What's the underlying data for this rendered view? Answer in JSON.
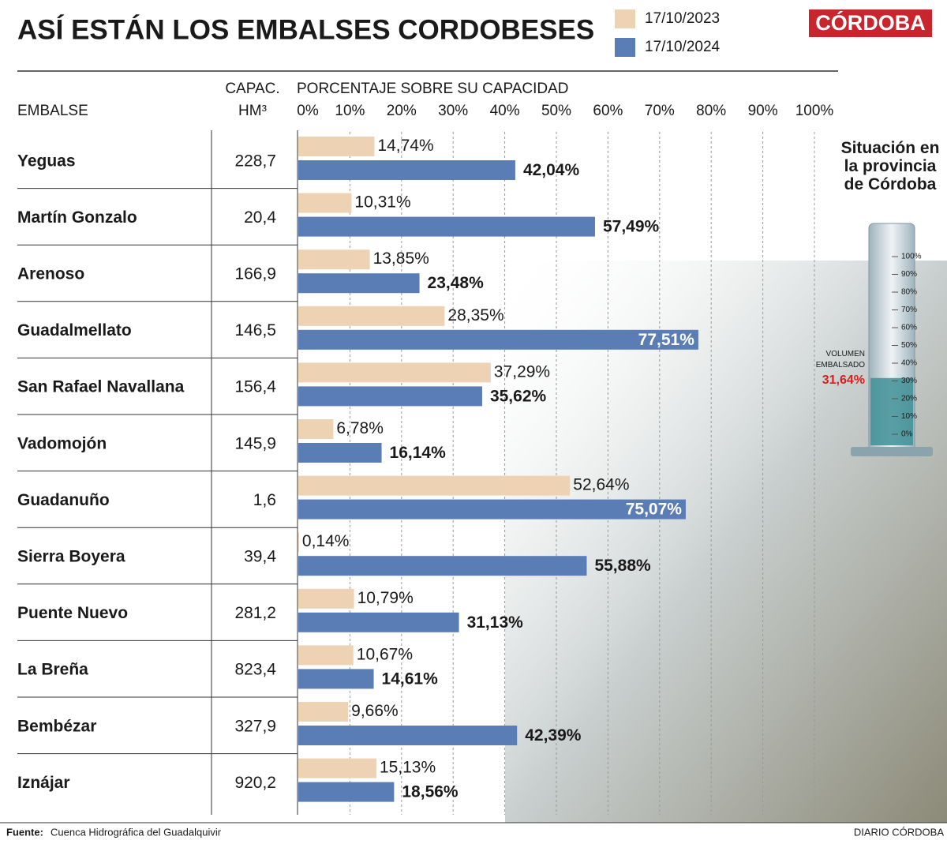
{
  "chart_data": {
    "type": "bar",
    "title": "ASÍ ESTÁN LOS EMBALSES CORDOBESES",
    "brand": "CÓRDOBA",
    "name_header": "EMBALSE",
    "capacity_header": "CAPAC.",
    "capacity_unit": "HM³",
    "axis_title": "PORCENTAJE SOBRE SU CAPACIDAD",
    "categories": [
      "Yeguas",
      "Martín Gonzalo",
      "Arenoso",
      "Guadalmellato",
      "San Rafael Navallana",
      "Vadomojón",
      "Guadanuño",
      "Sierra Boyera",
      "Puente Nuevo",
      "La Breña",
      "Bembézar",
      "Iznájar"
    ],
    "capacities": [
      "228,7",
      "20,4",
      "166,9",
      "146,5",
      "156,4",
      "145,9",
      "1,6",
      "39,4",
      "281,2",
      "823,4",
      "327,9",
      "920,2"
    ],
    "series": [
      {
        "name": "17/10/2023",
        "color": "#edd3b4",
        "values": [
          14.74,
          10.31,
          13.85,
          28.35,
          37.29,
          6.78,
          52.64,
          0.14,
          10.79,
          10.67,
          9.66,
          15.13
        ],
        "value_labels": [
          "14,74%",
          "10,31%",
          "13,85%",
          "28,35%",
          "37,29%",
          "6,78%",
          "52,64%",
          "0,14%",
          "10,79%",
          "10,67%",
          "9,66%",
          "15,13%"
        ]
      },
      {
        "name": "17/10/2024",
        "color": "#5b7db6",
        "values": [
          42.04,
          57.49,
          23.48,
          77.51,
          35.62,
          16.14,
          75.07,
          55.88,
          31.13,
          14.61,
          42.39,
          18.56
        ],
        "value_labels": [
          "42,04%",
          "57,49%",
          "23,48%",
          "77,51%",
          "35,62%",
          "16,14%",
          "75,07%",
          "55,88%",
          "31,13%",
          "14,61%",
          "42,39%",
          "18,56%"
        ]
      }
    ],
    "xlim": [
      0,
      100
    ],
    "xticks": [
      {
        "value": 0,
        "label": "0%"
      },
      {
        "value": 10,
        "label": "10%"
      },
      {
        "value": 20,
        "label": "20%"
      },
      {
        "value": 30,
        "label": "30%"
      },
      {
        "value": 40,
        "label": "40%"
      },
      {
        "value": 50,
        "label": "50%"
      },
      {
        "value": 60,
        "label": "60%"
      },
      {
        "value": 70,
        "label": "70%"
      },
      {
        "value": 80,
        "label": "80%"
      },
      {
        "value": 90,
        "label": "90%"
      },
      {
        "value": 100,
        "label": "100%"
      }
    ],
    "grid": true,
    "gauge": {
      "title": "Situación en la provincia de Córdoba",
      "label": "VOLUMEN EMBALSADO",
      "value": 31.64,
      "value_label": "31,64%",
      "color": "#3f8f96",
      "ylim": [
        0,
        100
      ],
      "yticks": [
        {
          "value": 0,
          "label": "0%"
        },
        {
          "value": 10,
          "label": "10%"
        },
        {
          "value": 20,
          "label": "20%"
        },
        {
          "value": 30,
          "label": "30%"
        },
        {
          "value": 40,
          "label": "40%"
        },
        {
          "value": 50,
          "label": "50%"
        },
        {
          "value": 60,
          "label": "60%"
        },
        {
          "value": 70,
          "label": "70%"
        },
        {
          "value": 80,
          "label": "80%"
        },
        {
          "value": 90,
          "label": "90%"
        },
        {
          "value": 100,
          "label": "100%"
        }
      ]
    },
    "source_label": "Fuente:",
    "source": "Cuenca Hidrográfica del Guadalquivir",
    "credit": "DIARIO CÓRDOBA"
  }
}
